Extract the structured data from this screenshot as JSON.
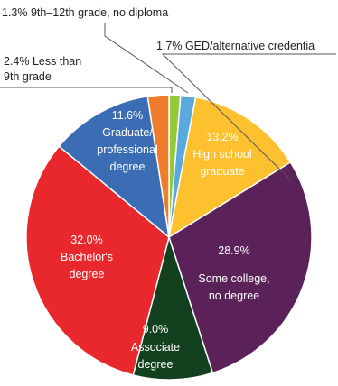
{
  "chart_data": {
    "type": "pie",
    "slices": [
      {
        "label": "9th–12th grade, no diploma",
        "value": 1.3,
        "value_text": "1.3%",
        "color": "#94c83d",
        "label_placement": "outside"
      },
      {
        "label": "GED/alternative credential",
        "value": 1.7,
        "value_text": "1.7%",
        "color": "#5aa9dd",
        "label_placement": "outside"
      },
      {
        "label": "High school graduate",
        "value": 13.2,
        "value_text": "13.2%",
        "color": "#fdc02f",
        "label_placement": "inside"
      },
      {
        "label": "Some college, no degree",
        "value": 28.9,
        "value_text": "28.9%",
        "color": "#5a2258",
        "label_placement": "inside"
      },
      {
        "label": "Associate degree",
        "value": 9.0,
        "value_text": "9.0%",
        "color": "#13401f",
        "label_placement": "inside"
      },
      {
        "label": "Bachelor's degree",
        "value": 32.0,
        "value_text": "32.0%",
        "color": "#e8282c",
        "label_placement": "inside"
      },
      {
        "label": "Graduate/ professional degree",
        "value": 11.6,
        "value_text": "11.6%",
        "color": "#3b6db4",
        "label_placement": "inside"
      },
      {
        "label": "Less than 9th grade",
        "value": 2.4,
        "value_text": "2.4%",
        "color": "#ef7d2b",
        "label_placement": "outside"
      }
    ],
    "outside_labels": {
      "ninth_to_twelfth": "1.3% 9th–12th grade, no diploma",
      "ged": "1.7% GED/alternative credentia",
      "less_than_9th_line1": "2.4% Less than",
      "less_than_9th_line2": "9th grade"
    },
    "inside_labels": {
      "hs_value": "13.2%",
      "hs_line1": "High school",
      "hs_line2": "graduate",
      "some_value": "28.9%",
      "some_line1": "Some college,",
      "some_line2": "no degree",
      "assoc_value": "9.0%",
      "assoc_line1": "Associate",
      "assoc_line2": "degree",
      "bach_value": "32.0%",
      "bach_line1": "Bachelor's",
      "bach_line2": "degree",
      "grad_value": "11.6%",
      "grad_line1": "Graduate/",
      "grad_line2": "professional",
      "grad_line3": "degree"
    },
    "start_angle_deg": 0,
    "direction": "clockwise",
    "slice_border_color": "#ffffff",
    "inside_text_colors": {
      "dark_slices": "#ffffff",
      "light_slices": "#ffffff"
    }
  }
}
